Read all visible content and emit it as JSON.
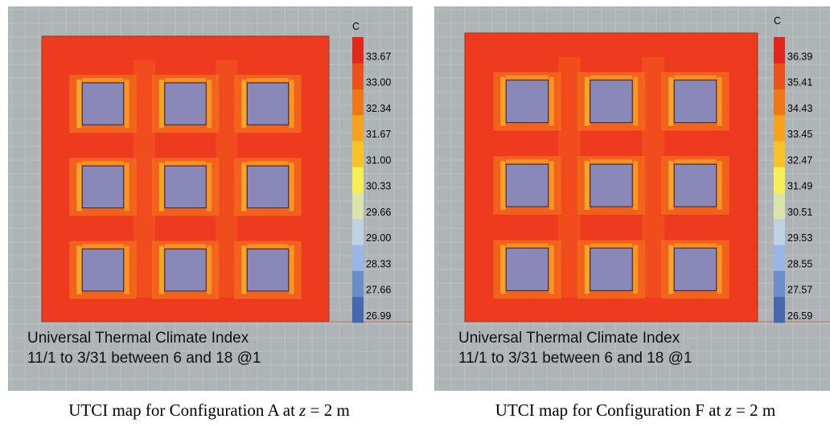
{
  "colors": {
    "background": "#aeb3b6",
    "grid": "#bcc1c4",
    "building_fill": "#8a87b9",
    "building_stroke": "#2e2b3a",
    "heat_hot": "#ee3a1e",
    "heat_warm": "#f3701d",
    "heat_peak": "#f9b82a",
    "legend_scale": [
      "#4668ad",
      "#6b8dca",
      "#9ab6e6",
      "#bed2e2",
      "#dbe4ad",
      "#f6ef55",
      "#f9c226",
      "#f7a21c",
      "#ef7717",
      "#e9521b",
      "#e2281c"
    ]
  },
  "chart_data": [
    {
      "type": "heatmap",
      "subject": "UTCI map, Configuration A",
      "legend_unit": "C",
      "legend_ticks": [
        "26.99",
        "27.66",
        "28.33",
        "29.00",
        "29.66",
        "30.33",
        "31.00",
        "31.67",
        "32.34",
        "33.00",
        "33.67"
      ],
      "value_range": [
        26.99,
        34.34
      ],
      "annotation_lines": [
        "Universal Thermal Climate Index",
        "11/1 to 3/31 between 6 and 18 @1"
      ],
      "buildings": {
        "rows": 3,
        "cols": 3
      }
    },
    {
      "type": "heatmap",
      "subject": "UTCI map, Configuration F",
      "legend_unit": "C",
      "legend_ticks": [
        "26.59",
        "27.57",
        "28.55",
        "29.53",
        "30.51",
        "31.49",
        "32.47",
        "33.45",
        "34.43",
        "35.41",
        "36.39"
      ],
      "value_range": [
        26.59,
        37.37
      ],
      "annotation_lines": [
        "Universal Thermal Climate Index",
        "11/1 to 3/31 between 6 and 18 @1"
      ],
      "buildings": {
        "rows": 3,
        "cols": 3
      }
    }
  ],
  "captions": [
    {
      "prefix": "UTCI map for Configuration A at ",
      "var": "z",
      "suffix": " = 2 m"
    },
    {
      "prefix": "UTCI map for Configuration F at ",
      "var": "z",
      "suffix": " = 2 m"
    }
  ]
}
